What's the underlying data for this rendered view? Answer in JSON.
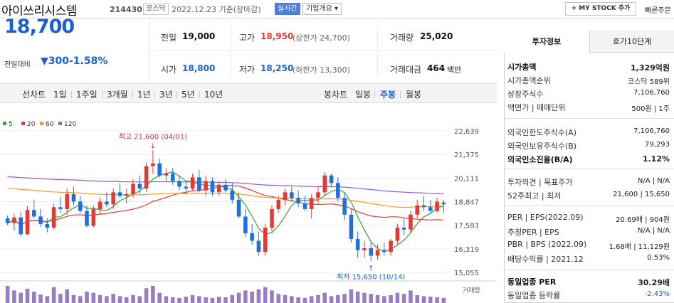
{
  "header": {
    "stock_name": "아이쓰리시스템",
    "stock_code": "214430",
    "market_tag": "코스닥",
    "date_text": "2022.12.23  기준(장마감)",
    "live_label": "실시간",
    "company_overview": "기업개요 ▾",
    "mystock_label": "+ MY STOCK 추가",
    "quick_order": "빠른주문"
  },
  "price": {
    "current": "18,700",
    "vs_label": "전일대비",
    "change": "▼300",
    "change_pct": "-1.58%"
  },
  "summary": {
    "prev_close_label": "전일",
    "prev_close": "19,000",
    "high_label": "고가",
    "high": "18,950",
    "upper_limit": "(상한가 24,700)",
    "volume_label": "거래량",
    "volume": "25,020",
    "open_label": "시가",
    "open": "18,800",
    "low_label": "저가",
    "low": "18,250",
    "lower_limit": "(하한가 13,300)",
    "amount_label": "거래대금",
    "amount": "464",
    "amount_unit": "백만"
  },
  "toolbar": {
    "line_chart": "선차트",
    "line_periods": [
      "1일",
      "1주일",
      "3개월",
      "1년",
      "3년",
      "5년",
      "10년"
    ],
    "candle_chart": "봉차트",
    "candle_periods": [
      "일봉",
      "주봉",
      "월봉"
    ],
    "active_candle": "주봉"
  },
  "colors": {
    "up": "#e53935",
    "down": "#1e6fe0",
    "ma5": "#2ea82e",
    "ma20": "#e53935",
    "ma60": "#f29b2b",
    "ma120": "#9b59d0",
    "volume": "#9a7cc4"
  },
  "chart_data": {
    "type": "candlestick",
    "legend": [
      "5",
      "20",
      "60",
      "120"
    ],
    "y_ticks": [
      "22,639",
      "21,375",
      "20,111",
      "18,847",
      "17,583",
      "16,319",
      "15,055"
    ],
    "ylim": [
      15055,
      22639
    ],
    "annotation_high": "최고 21,600 (04/01)",
    "annotation_low": "최저 15,650 (10/14)",
    "volume_label": "거래량",
    "candles": [
      {
        "o": 17950,
        "h": 18100,
        "l": 17600,
        "c": 17700
      },
      {
        "o": 17700,
        "h": 18200,
        "l": 17300,
        "c": 18000
      },
      {
        "o": 18000,
        "h": 18300,
        "l": 17000,
        "c": 17100
      },
      {
        "o": 17100,
        "h": 18600,
        "l": 17050,
        "c": 18400
      },
      {
        "o": 18400,
        "h": 18950,
        "l": 17950,
        "c": 18050
      },
      {
        "o": 18050,
        "h": 18450,
        "l": 17500,
        "c": 17650
      },
      {
        "o": 17650,
        "h": 17950,
        "l": 17200,
        "c": 17450
      },
      {
        "o": 17450,
        "h": 18750,
        "l": 17350,
        "c": 18550
      },
      {
        "o": 18550,
        "h": 19100,
        "l": 18250,
        "c": 18450
      },
      {
        "o": 18450,
        "h": 19550,
        "l": 18150,
        "c": 19250
      },
      {
        "o": 19250,
        "h": 19650,
        "l": 18650,
        "c": 18850
      },
      {
        "o": 18850,
        "h": 19150,
        "l": 18250,
        "c": 18350
      },
      {
        "o": 18350,
        "h": 18650,
        "l": 17450,
        "c": 17550
      },
      {
        "o": 17550,
        "h": 18650,
        "l": 17450,
        "c": 18450
      },
      {
        "o": 18450,
        "h": 19050,
        "l": 18150,
        "c": 18850
      },
      {
        "o": 18850,
        "h": 19350,
        "l": 18550,
        "c": 18700
      },
      {
        "o": 18700,
        "h": 19550,
        "l": 18450,
        "c": 19350
      },
      {
        "o": 19350,
        "h": 19850,
        "l": 19050,
        "c": 19150
      },
      {
        "o": 19150,
        "h": 19550,
        "l": 18750,
        "c": 19250
      },
      {
        "o": 19250,
        "h": 20050,
        "l": 19050,
        "c": 19800
      },
      {
        "o": 19800,
        "h": 20250,
        "l": 19250,
        "c": 19550
      },
      {
        "o": 19550,
        "h": 20950,
        "l": 19350,
        "c": 20750
      },
      {
        "o": 20750,
        "h": 21600,
        "l": 20350,
        "c": 20900
      },
      {
        "o": 20900,
        "h": 21150,
        "l": 20150,
        "c": 20250
      },
      {
        "o": 20250,
        "h": 20650,
        "l": 19950,
        "c": 20350
      },
      {
        "o": 20350,
        "h": 20650,
        "l": 19750,
        "c": 19950
      },
      {
        "o": 19950,
        "h": 20250,
        "l": 19450,
        "c": 19650
      },
      {
        "o": 19650,
        "h": 19950,
        "l": 19250,
        "c": 19550
      },
      {
        "o": 19550,
        "h": 20350,
        "l": 19450,
        "c": 20150
      },
      {
        "o": 20150,
        "h": 20550,
        "l": 19350,
        "c": 19450
      },
      {
        "o": 19450,
        "h": 20250,
        "l": 19150,
        "c": 19950
      },
      {
        "o": 19950,
        "h": 20150,
        "l": 19150,
        "c": 19350
      },
      {
        "o": 19350,
        "h": 19950,
        "l": 19150,
        "c": 19750
      },
      {
        "o": 19750,
        "h": 20050,
        "l": 19350,
        "c": 19450
      },
      {
        "o": 19450,
        "h": 19850,
        "l": 18750,
        "c": 18950
      },
      {
        "o": 18950,
        "h": 19350,
        "l": 17950,
        "c": 18050
      },
      {
        "o": 18050,
        "h": 18450,
        "l": 16950,
        "c": 17150
      },
      {
        "o": 17150,
        "h": 17650,
        "l": 16550,
        "c": 16750
      },
      {
        "o": 16750,
        "h": 17250,
        "l": 15950,
        "c": 16150
      },
      {
        "o": 16150,
        "h": 17650,
        "l": 15950,
        "c": 17450
      },
      {
        "o": 17450,
        "h": 18650,
        "l": 17250,
        "c": 18450
      },
      {
        "o": 18450,
        "h": 19150,
        "l": 18250,
        "c": 18950
      },
      {
        "o": 18950,
        "h": 19550,
        "l": 18650,
        "c": 19350
      },
      {
        "o": 19350,
        "h": 19650,
        "l": 18850,
        "c": 19050
      },
      {
        "o": 19050,
        "h": 19450,
        "l": 18550,
        "c": 18750
      },
      {
        "o": 18750,
        "h": 19150,
        "l": 18350,
        "c": 18450
      },
      {
        "o": 18450,
        "h": 19250,
        "l": 17950,
        "c": 19050
      },
      {
        "o": 19050,
        "h": 19650,
        "l": 18750,
        "c": 19350
      },
      {
        "o": 19350,
        "h": 20450,
        "l": 19150,
        "c": 20250
      },
      {
        "o": 20250,
        "h": 20350,
        "l": 19650,
        "c": 19850
      },
      {
        "o": 19850,
        "h": 20150,
        "l": 18850,
        "c": 19050
      },
      {
        "o": 19050,
        "h": 19350,
        "l": 17850,
        "c": 18150
      },
      {
        "o": 18150,
        "h": 18450,
        "l": 16650,
        "c": 16850
      },
      {
        "o": 16850,
        "h": 17250,
        "l": 15850,
        "c": 16250
      },
      {
        "o": 16250,
        "h": 16750,
        "l": 15850,
        "c": 16350
      },
      {
        "o": 16350,
        "h": 16650,
        "l": 15650,
        "c": 15950
      },
      {
        "o": 15950,
        "h": 16550,
        "l": 15750,
        "c": 16250
      },
      {
        "o": 16250,
        "h": 16650,
        "l": 15950,
        "c": 16150
      },
      {
        "o": 16150,
        "h": 16850,
        "l": 15950,
        "c": 16750
      },
      {
        "o": 16750,
        "h": 17650,
        "l": 16550,
        "c": 17450
      },
      {
        "o": 17450,
        "h": 17950,
        "l": 17050,
        "c": 17350
      },
      {
        "o": 17350,
        "h": 18350,
        "l": 17150,
        "c": 18150
      },
      {
        "o": 18150,
        "h": 18950,
        "l": 17950,
        "c": 18650
      },
      {
        "o": 18650,
        "h": 19150,
        "l": 18350,
        "c": 18550
      },
      {
        "o": 18550,
        "h": 18950,
        "l": 18250,
        "c": 18350
      },
      {
        "o": 18350,
        "h": 19050,
        "l": 18250,
        "c": 18850
      },
      {
        "o": 18800,
        "h": 18950,
        "l": 18250,
        "c": 18700
      }
    ],
    "volumes": [
      30,
      22,
      18,
      25,
      20,
      15,
      12,
      28,
      16,
      24,
      14,
      12,
      20,
      18,
      14,
      12,
      16,
      12,
      10,
      14,
      12,
      26,
      30,
      18,
      12,
      10,
      9,
      11,
      14,
      12,
      10,
      9,
      11,
      10,
      14,
      18,
      22,
      20,
      24,
      28,
      22,
      16,
      14,
      12,
      10,
      9,
      12,
      14,
      18,
      12,
      14,
      16,
      24,
      20,
      18,
      16,
      14,
      12,
      14,
      18,
      16,
      22,
      14,
      12,
      11,
      10,
      9
    ]
  },
  "side": {
    "tab_invest": "투자정보",
    "tab_orderbook": "호가10단계",
    "rows1": [
      {
        "label": "시가총액",
        "value": "1,329억원",
        "strong": true
      },
      {
        "label": "시가총액순위",
        "value": "코스닥  589위"
      },
      {
        "label": "상장주식수",
        "value": "7,106,760"
      },
      {
        "label": "액면가 | 매매단위",
        "value": "500원 | 1주"
      }
    ],
    "rows2": [
      {
        "label": "외국인한도주식수(A)",
        "value": "7,106,760"
      },
      {
        "label": "외국인보유주식수(B)",
        "value": "79,293"
      },
      {
        "label": "외국인소진율(B/A)",
        "value": "1.12%",
        "strong": true
      }
    ],
    "rows3": [
      {
        "label": "투자의견 | 목표주가",
        "value": "N/A | N/A"
      },
      {
        "label": "52주최고 | 최저",
        "value": "21,600 | 15,650"
      }
    ],
    "rows4": [
      {
        "label": "PER | EPS(2022.09)",
        "value": "20.69배 | 904원"
      },
      {
        "label": "추정PER | EPS",
        "value": "N/A | N/A"
      },
      {
        "label": "PBR | BPS (2022.09)",
        "value": "1.68배 | 11,129원"
      },
      {
        "label": "배당수익률 | 2021.12",
        "value": "0.53%"
      }
    ],
    "rows5": [
      {
        "label": "동일업종 PER",
        "value": "30.29배",
        "strong": true
      },
      {
        "label": "동일업종 등락률",
        "value": "-2.43%"
      }
    ]
  }
}
